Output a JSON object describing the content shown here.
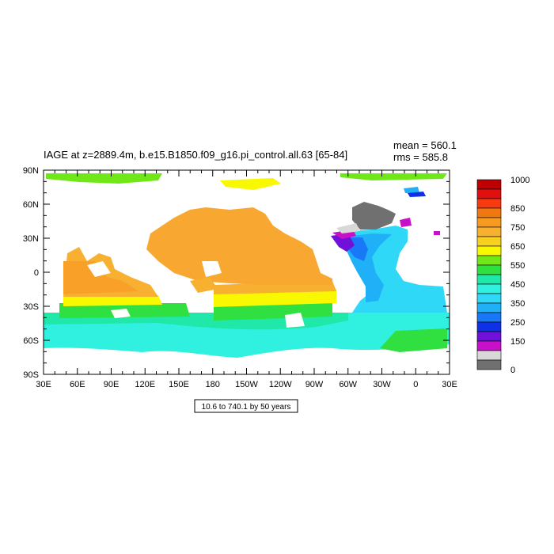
{
  "title": "IAGE at z=2889.4m, b.e15.B1850.f09_g16.pi_control.all.63 [65-84]",
  "stats": {
    "mean": "mean = 560.1",
    "rms": "rms = 585.8"
  },
  "axes": {
    "x_ticks": [
      "30E",
      "60E",
      "90E",
      "120E",
      "150E",
      "180",
      "150W",
      "120W",
      "90W",
      "60W",
      "30W",
      "0",
      "30E"
    ],
    "y_ticks": [
      "90N",
      "60N",
      "30N",
      "0",
      "30S",
      "60S",
      "90S"
    ]
  },
  "range_label": "10.6 to 740.1 by 50 years",
  "colorbar": {
    "labels": [
      "1000",
      "850",
      "750",
      "650",
      "550",
      "450",
      "350",
      "250",
      "150",
      "0"
    ],
    "colors": [
      "#c00000",
      "#e01010",
      "#f83a10",
      "#f07810",
      "#f89a20",
      "#f8b030",
      "#f8d020",
      "#f8f800",
      "#70e818",
      "#30e040",
      "#20e8a8",
      "#30f0e0",
      "#30d8f8",
      "#20b0f8",
      "#1878f8",
      "#1030e8",
      "#7010d8",
      "#c810c8",
      "#d8d8d8",
      "#707070"
    ]
  },
  "chart_data": {
    "type": "map",
    "title": "IAGE at z=2889.4m, b.e15.B1850.f09_g16.pi_control.all.63 [65-84]",
    "variable": "IAGE",
    "mean": 560.1,
    "rms": 585.8,
    "contour_min": 10.6,
    "contour_max": 740.1,
    "contour_interval": 50,
    "xlim": [
      "30E",
      "30E"
    ],
    "ylim": [
      "90S",
      "90N"
    ],
    "regions": [
      {
        "region": "North Pacific",
        "level": "700-750"
      },
      {
        "region": "Indian Ocean (north)",
        "level": "700-750"
      },
      {
        "region": "Southern Indian / Pacific (40S)",
        "level": "600-700"
      },
      {
        "region": "Southern Ocean",
        "level": "400-500"
      },
      {
        "region": "Arctic (Eurasian side)",
        "level": "500-600"
      },
      {
        "region": "Arctic (Beaufort)",
        "level": "600-700"
      },
      {
        "region": "North Atlantic (deep western)",
        "level": "150-300"
      },
      {
        "region": "Nordic Seas",
        "level": "0-100"
      },
      {
        "region": "South Atlantic",
        "level": "300-450"
      }
    ]
  }
}
